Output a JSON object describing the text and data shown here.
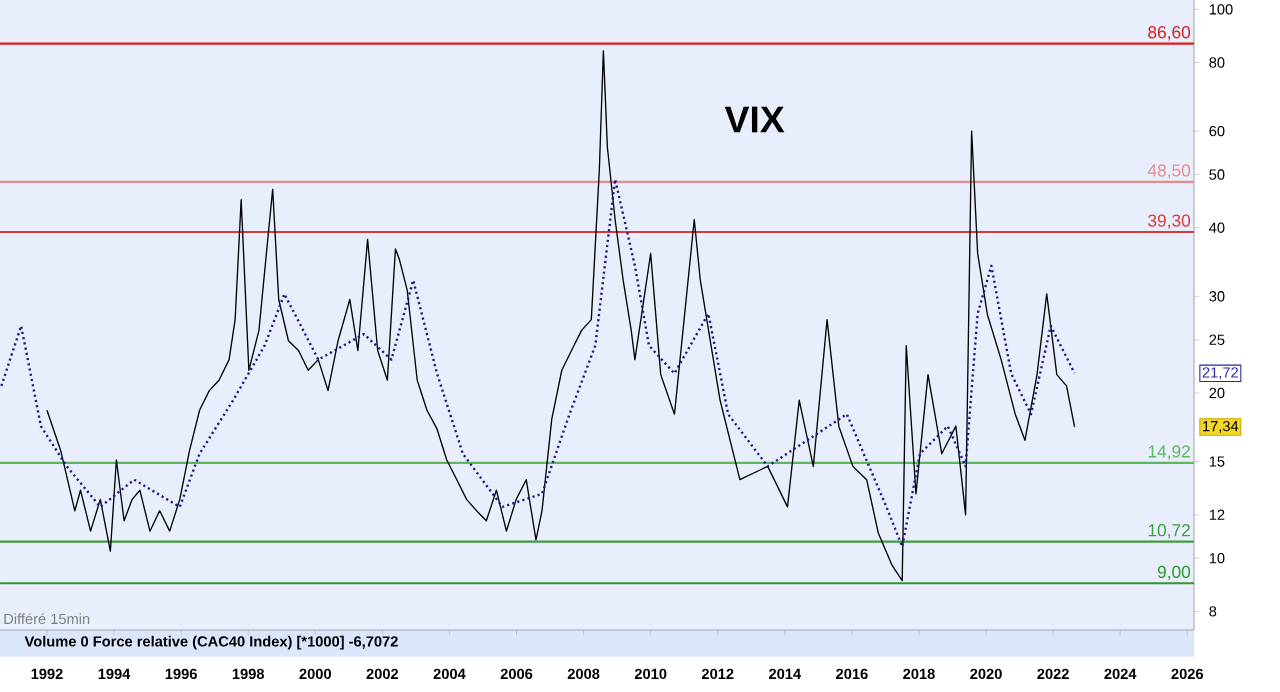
{
  "chart_data": {
    "type": "line",
    "title": "VIX",
    "log": "y",
    "xlim": [
      1990.6,
      2026.2
    ],
    "xticks": [
      1992,
      1994,
      1996,
      1998,
      2000,
      2002,
      2004,
      2006,
      2008,
      2010,
      2012,
      2014,
      2016,
      2018,
      2020,
      2022,
      2024,
      2026
    ],
    "ylim": [
      7.4,
      104
    ],
    "yticks": [
      8,
      10,
      12,
      15,
      20,
      25,
      30,
      40,
      50,
      60,
      80,
      100
    ],
    "grid": false,
    "marker": "none",
    "series": [
      {
        "color": "#000000",
        "line_style": "solid",
        "x": [
          1992.0,
          1992.41,
          1992.83,
          1993.0,
          1993.3,
          1993.59,
          1993.89,
          1994.07,
          1994.3,
          1994.54,
          1994.77,
          1995.07,
          1995.36,
          1995.66,
          1995.96,
          1996.25,
          1996.55,
          1996.84,
          1997.13,
          1997.43,
          1997.61,
          1997.79,
          1998.02,
          1998.32,
          1998.61,
          1998.73,
          1998.91,
          1999.2,
          1999.5,
          1999.79,
          2000.09,
          2000.38,
          2000.68,
          2001.03,
          2001.27,
          2001.56,
          2001.86,
          2002.15,
          2002.39,
          2002.51,
          2002.74,
          2003.04,
          2003.33,
          2003.63,
          2003.92,
          2004.22,
          2004.51,
          2004.81,
          2005.1,
          2005.4,
          2005.7,
          2005.99,
          2006.29,
          2006.58,
          2006.76,
          2007.05,
          2007.35,
          2007.64,
          2007.94,
          2008.23,
          2008.47,
          2008.59,
          2008.71,
          2008.94,
          2009.18,
          2009.42,
          2009.53,
          2010.0,
          2010.3,
          2010.71,
          2011.3,
          2011.48,
          2012.07,
          2012.66,
          2013.49,
          2014.08,
          2014.43,
          2014.85,
          2015.26,
          2015.61,
          2016.03,
          2016.44,
          2016.79,
          2017.2,
          2017.5,
          2017.62,
          2017.91,
          2018.27,
          2018.68,
          2019.1,
          2019.39,
          2019.57,
          2019.75,
          2020.04,
          2020.45,
          2020.87,
          2021.16,
          2021.52,
          2021.81,
          2022.11,
          2022.4,
          2022.64
        ],
        "values": [
          18.6,
          15.7,
          12.2,
          13.3,
          11.2,
          12.8,
          10.3,
          15.1,
          11.7,
          12.8,
          13.3,
          11.2,
          12.2,
          11.2,
          12.8,
          15.7,
          18.6,
          20.2,
          21.1,
          23.0,
          27.2,
          45.0,
          22.0,
          26.0,
          39.6,
          47.0,
          29.6,
          24.9,
          23.9,
          22.0,
          23.0,
          20.2,
          24.9,
          29.6,
          23.9,
          38.1,
          23.9,
          21.1,
          36.6,
          35.0,
          30.8,
          21.1,
          18.6,
          17.2,
          15.1,
          13.9,
          12.8,
          12.2,
          11.7,
          13.3,
          11.2,
          12.8,
          13.9,
          10.8,
          12.2,
          17.9,
          22.0,
          23.9,
          26.0,
          27.2,
          51.0,
          84.0,
          56.0,
          41.4,
          32.1,
          26.0,
          23.0,
          35.9,
          21.6,
          18.3,
          41.4,
          32.1,
          19.4,
          13.9,
          14.7,
          12.4,
          19.4,
          14.7,
          27.2,
          17.4,
          14.7,
          13.9,
          11.1,
          9.7,
          9.1,
          24.4,
          13.1,
          21.6,
          15.5,
          17.4,
          12.0,
          60.0,
          35.9,
          27.8,
          23.0,
          18.3,
          16.4,
          21.6,
          30.3,
          21.6,
          20.6,
          17.34
        ]
      },
      {
        "color": "#1a1a8c",
        "line_style": "dotted",
        "x": [
          1990.64,
          1991.23,
          1991.82,
          1992.59,
          1993.59,
          1994.6,
          1995.96,
          1996.55,
          1997.55,
          1998.49,
          1999.08,
          2000.09,
          2001.45,
          2002.27,
          2002.92,
          2003.63,
          2004.4,
          2005.58,
          2006.76,
          2007.58,
          2008.35,
          2008.94,
          2009.53,
          2009.95,
          2010.71,
          2011.72,
          2012.31,
          2013.49,
          2014.67,
          2015.85,
          2017.03,
          2017.5,
          2018.03,
          2018.86,
          2019.39,
          2019.75,
          2020.16,
          2020.75,
          2021.34,
          2021.93,
          2022.64
        ],
        "values": [
          20.6,
          26.5,
          17.4,
          14.7,
          12.4,
          13.9,
          12.4,
          15.5,
          19.4,
          24.4,
          30.3,
          23.0,
          25.6,
          23.0,
          32.1,
          21.7,
          15.5,
          12.4,
          13.1,
          18.3,
          24.4,
          49.0,
          34.1,
          24.4,
          21.7,
          27.9,
          18.3,
          14.7,
          16.4,
          18.3,
          12.4,
          10.5,
          15.5,
          17.4,
          14.7,
          27.9,
          34.1,
          21.7,
          18.3,
          26.5,
          21.72
        ]
      }
    ],
    "ref_lines": [
      {
        "axis": "y",
        "value": 86.6,
        "label": "86,60",
        "color": "#e01b1b"
      },
      {
        "axis": "y",
        "value": 48.5,
        "label": "48,50",
        "color": "#e88a8a"
      },
      {
        "axis": "y",
        "value": 39.3,
        "label": "39,30",
        "color": "#d83a3a"
      },
      {
        "axis": "y",
        "value": 14.92,
        "label": "14,92",
        "color": "#5cb85c"
      },
      {
        "axis": "y",
        "value": 10.72,
        "label": "10,72",
        "color": "#3e9e3e"
      },
      {
        "axis": "y",
        "value": 9.0,
        "label": "9,00",
        "color": "#2e9a2e"
      }
    ],
    "annotations": [
      {
        "text": "21,72",
        "y": 21.72
      },
      {
        "text": "17,34",
        "y": 17.34
      },
      "Différé 15min",
      "Volume 0 Force relative (CAC40 Index) [*1000] -6,7072"
    ]
  }
}
